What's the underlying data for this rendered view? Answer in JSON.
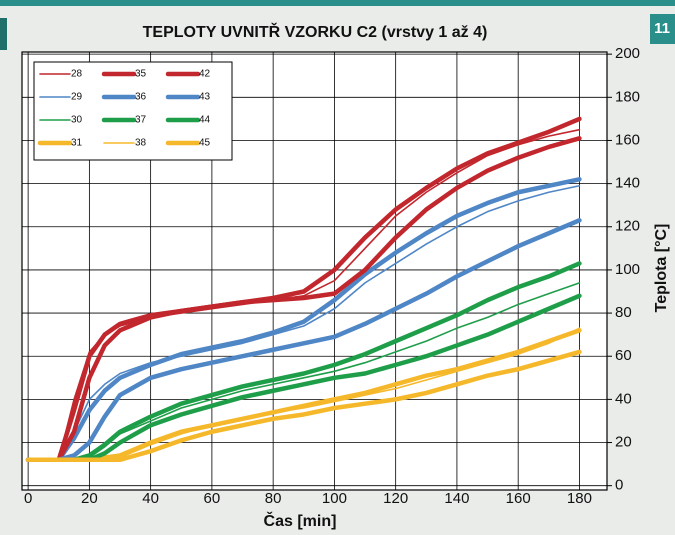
{
  "page_number": "11",
  "chart_data": {
    "type": "line",
    "title": "TEPLOTY UVNITŘ VZORKU C2 (vrstvy 1 až 4)",
    "x_label": "Čas [min]",
    "y_label": "Teplota [°C]",
    "x": [
      0,
      10,
      15,
      20,
      25,
      30,
      40,
      50,
      60,
      70,
      80,
      90,
      100,
      110,
      120,
      130,
      140,
      150,
      160,
      170,
      180
    ],
    "xlim": [
      -2,
      189
    ],
    "xticks": [
      0,
      20,
      40,
      60,
      80,
      100,
      120,
      140,
      160,
      180
    ],
    "ylim": [
      -2,
      201
    ],
    "yticks": [
      0,
      20,
      40,
      60,
      80,
      100,
      120,
      140,
      160,
      180,
      200
    ],
    "y_axis_side": "right",
    "grid": true,
    "legend": "upper left",
    "legend_columns": 3,
    "series": [
      {
        "name": "28",
        "color": "#c1272d",
        "line_width": 1.6,
        "values": [
          12,
          12,
          40,
          62,
          70,
          74,
          78,
          80,
          82,
          84,
          86,
          88,
          95,
          110,
          125,
          136,
          145,
          153,
          158,
          162,
          165
        ]
      },
      {
        "name": "29",
        "color": "#4f86c6",
        "line_width": 1.6,
        "values": [
          12,
          12,
          25,
          40,
          47,
          52,
          57,
          60,
          63,
          66,
          70,
          74,
          82,
          94,
          103,
          112,
          120,
          127,
          132,
          136,
          139
        ]
      },
      {
        "name": "30",
        "color": "#1f9e4a",
        "line_width": 1.6,
        "values": [
          12,
          12,
          12,
          13,
          18,
          24,
          30,
          36,
          40,
          44,
          47,
          50,
          53,
          57,
          62,
          67,
          73,
          78,
          84,
          89,
          94
        ]
      },
      {
        "name": "31",
        "color": "#f6b82b",
        "line_width": 4.5,
        "values": [
          12,
          12,
          12,
          12,
          13,
          14,
          20,
          25,
          28,
          31,
          34,
          37,
          40,
          43,
          47,
          51,
          54,
          58,
          62,
          67,
          72
        ]
      },
      {
        "name": "35",
        "color": "#c1272d",
        "line_width": 4.5,
        "values": [
          12,
          12,
          35,
          60,
          70,
          75,
          79,
          81,
          83,
          85,
          87,
          90,
          100,
          115,
          128,
          138,
          147,
          154,
          159,
          164,
          170
        ]
      },
      {
        "name": "36",
        "color": "#4f86c6",
        "line_width": 4.5,
        "values": [
          12,
          12,
          22,
          35,
          44,
          50,
          56,
          61,
          64,
          67,
          71,
          76,
          86,
          98,
          108,
          117,
          125,
          131,
          136,
          139,
          142
        ]
      },
      {
        "name": "37",
        "color": "#1f9e4a",
        "line_width": 4.5,
        "values": [
          12,
          12,
          12,
          14,
          19,
          25,
          32,
          38,
          42,
          46,
          49,
          52,
          56,
          61,
          67,
          73,
          79,
          86,
          92,
          97,
          103
        ]
      },
      {
        "name": "38",
        "color": "#f6b82b",
        "line_width": 1.6,
        "values": [
          12,
          12,
          12,
          12,
          12,
          13,
          19,
          24,
          28,
          31,
          34,
          36,
          39,
          42,
          45,
          49,
          53,
          57,
          61,
          66,
          73
        ]
      },
      {
        "name": "42",
        "color": "#c1272d",
        "line_width": 4.5,
        "values": [
          12,
          12,
          25,
          50,
          65,
          72,
          78,
          81,
          83,
          85,
          86,
          87,
          89,
          100,
          115,
          128,
          138,
          146,
          152,
          157,
          161
        ]
      },
      {
        "name": "43",
        "color": "#4f86c6",
        "line_width": 4.5,
        "values": [
          12,
          12,
          14,
          20,
          32,
          42,
          50,
          54,
          57,
          60,
          63,
          66,
          69,
          75,
          82,
          89,
          97,
          104,
          111,
          117,
          123
        ]
      },
      {
        "name": "44",
        "color": "#1f9e4a",
        "line_width": 4.5,
        "values": [
          12,
          12,
          12,
          12,
          15,
          20,
          28,
          33,
          37,
          41,
          44,
          47,
          50,
          52,
          56,
          60,
          65,
          70,
          76,
          82,
          88
        ]
      },
      {
        "name": "45",
        "color": "#f6b82b",
        "line_width": 4.5,
        "values": [
          12,
          12,
          12,
          12,
          12,
          12,
          16,
          21,
          25,
          28,
          31,
          33,
          36,
          38,
          40,
          43,
          47,
          51,
          54,
          58,
          62
        ]
      }
    ]
  }
}
